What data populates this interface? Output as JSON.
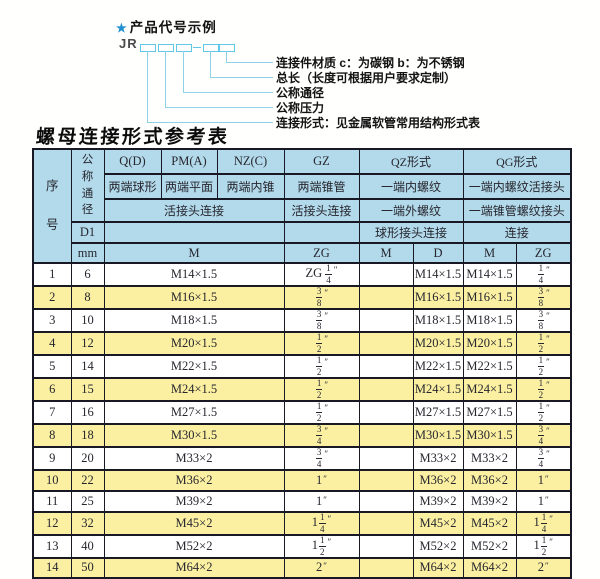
{
  "diagram": {
    "star": "★",
    "heading": "产品代号示例",
    "code_prefix": "JR",
    "labels": [
      "连接件材质  c：为碳钢  b：为不锈钢",
      "总长（长度可根据用户要求定制）",
      "公称通径",
      "公称压力",
      "连接形式：见金属软管常用结构形式表"
    ]
  },
  "table_title": "螺母连接形式参考表",
  "table": {
    "header": {
      "seq": "序号",
      "dn": "公称通径",
      "d1": "D1",
      "unit": "mm",
      "q": "Q(D)",
      "q_sub": "两端球形",
      "pm": "PM(A)",
      "pm_sub": "两端平面",
      "nz": "NZ(C)",
      "nz_sub": "两端内锥",
      "gz": "GZ",
      "gz_sub": "两端锥管",
      "gz_conn": "活接头连接",
      "union_conn": "活接头连接",
      "qz": "QZ形式",
      "qz_sub1": "一端内螺纹",
      "qz_sub2": "一端外螺纹",
      "qz_conn": "球形接头连接",
      "qg": "QG形式",
      "qg_sub1": "一端内螺纹活接头",
      "qg_sub2": "一端锥管螺纹接头",
      "qg_conn": "连接",
      "m": "M",
      "zg": "ZG",
      "qz_m": "M",
      "qz_d": "D",
      "qg_m": "M",
      "qg_zg": "ZG"
    },
    "rows": [
      {
        "no": "1",
        "dn": "6",
        "m": "M14×1.5",
        "gz_zg": {
          "pre": "ZG",
          "num": "1",
          "den": "4"
        },
        "qz_m": "",
        "qz_d": "M14×1.5",
        "qg_m": "M14×1.5",
        "qg_zg": {
          "num": "1",
          "den": "4"
        }
      },
      {
        "no": "2",
        "dn": "8",
        "m": "M16×1.5",
        "gz_zg": {
          "num": "3",
          "den": "8"
        },
        "qz_m": "",
        "qz_d": "M16×1.5",
        "qg_m": "M16×1.5",
        "qg_zg": {
          "num": "3",
          "den": "8"
        }
      },
      {
        "no": "3",
        "dn": "10",
        "m": "M18×1.5",
        "gz_zg": {
          "num": "3",
          "den": "8"
        },
        "qz_m": "",
        "qz_d": "M18×1.5",
        "qg_m": "M18×1.5",
        "qg_zg": {
          "num": "3",
          "den": "8"
        }
      },
      {
        "no": "4",
        "dn": "12",
        "m": "M20×1.5",
        "gz_zg": {
          "num": "1",
          "den": "2"
        },
        "qz_m": "",
        "qz_d": "M20×1.5",
        "qg_m": "M20×1.5",
        "qg_zg": {
          "num": "1",
          "den": "2"
        }
      },
      {
        "no": "5",
        "dn": "14",
        "m": "M22×1.5",
        "gz_zg": {
          "num": "1",
          "den": "2"
        },
        "qz_m": "",
        "qz_d": "M22×1.5",
        "qg_m": "M22×1.5",
        "qg_zg": {
          "num": "1",
          "den": "2"
        }
      },
      {
        "no": "6",
        "dn": "15",
        "m": "M24×1.5",
        "gz_zg": {
          "num": "1",
          "den": "2"
        },
        "qz_m": "",
        "qz_d": "M24×1.5",
        "qg_m": "M24×1.5",
        "qg_zg": {
          "num": "1",
          "den": "2"
        }
      },
      {
        "no": "7",
        "dn": "16",
        "m": "M27×1.5",
        "gz_zg": {
          "num": "1",
          "den": "2"
        },
        "qz_m": "",
        "qz_d": "M27×1.5",
        "qg_m": "M27×1.5",
        "qg_zg": {
          "num": "1",
          "den": "2"
        }
      },
      {
        "no": "8",
        "dn": "18",
        "m": "M30×1.5",
        "gz_zg": {
          "num": "3",
          "den": "4"
        },
        "qz_m": "",
        "qz_d": "M30×1.5",
        "qg_m": "M30×1.5",
        "qg_zg": {
          "num": "3",
          "den": "4"
        }
      },
      {
        "no": "9",
        "dn": "20",
        "m": "M33×2",
        "gz_zg": {
          "num": "3",
          "den": "4"
        },
        "qz_m": "",
        "qz_d": "M33×2",
        "qg_m": "M33×2",
        "qg_zg": {
          "num": "3",
          "den": "4"
        }
      },
      {
        "no": "10",
        "dn": "22",
        "m": "M36×2",
        "gz_zg": {
          "whole": "1"
        },
        "qz_m": "",
        "qz_d": "M36×2",
        "qg_m": "M36×2",
        "qg_zg": {
          "whole": "1"
        }
      },
      {
        "no": "11",
        "dn": "25",
        "m": "M39×2",
        "gz_zg": {
          "whole": "1"
        },
        "qz_m": "",
        "qz_d": "M39×2",
        "qg_m": "M39×2",
        "qg_zg": {
          "whole": "1"
        }
      },
      {
        "no": "12",
        "dn": "32",
        "m": "M45×2",
        "gz_zg": {
          "whole": "1",
          "num": "1",
          "den": "4"
        },
        "qz_m": "",
        "qz_d": "M45×2",
        "qg_m": "M45×2",
        "qg_zg": {
          "whole": "1",
          "num": "1",
          "den": "4"
        }
      },
      {
        "no": "13",
        "dn": "40",
        "m": "M52×2",
        "gz_zg": {
          "whole": "1",
          "num": "1",
          "den": "2"
        },
        "qz_m": "",
        "qz_d": "M52×2",
        "qg_m": "M52×2",
        "qg_zg": {
          "whole": "1",
          "num": "1",
          "den": "2"
        }
      },
      {
        "no": "14",
        "dn": "50",
        "m": "M64×2",
        "gz_zg": {
          "whole": "2"
        },
        "qz_m": "",
        "qz_d": "M64×2",
        "qg_m": "M64×2",
        "qg_zg": {
          "whole": "2"
        }
      }
    ]
  },
  "colors": {
    "header_bg": "#b3daeb",
    "alt_row_bg": "#fbf0a2",
    "grid": "#191926",
    "diagram_line": "#8fd2e8",
    "star": "#1f8fd0"
  }
}
